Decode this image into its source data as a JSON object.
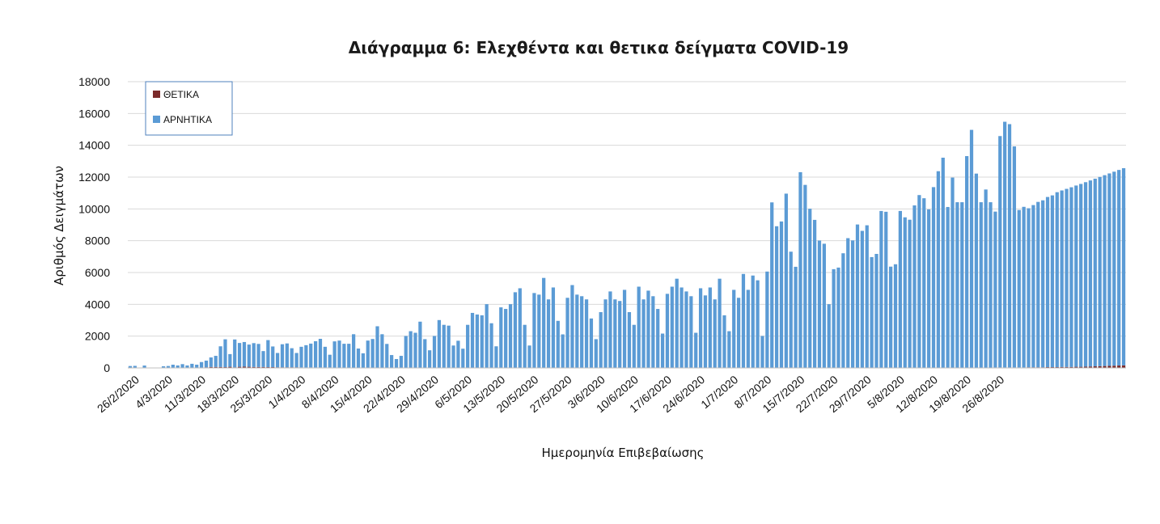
{
  "chart_data": {
    "type": "bar",
    "title": "Διάγραμμα 6: Ελεχθέντα και θετικα δείγματα COVID-19",
    "xlabel": "Ημερομηνία Επιβεβαίωσης",
    "ylabel": "Αριθμός Δειγμάτων",
    "ylim": [
      0,
      18000
    ],
    "yticks": [
      0,
      2000,
      4000,
      6000,
      8000,
      10000,
      12000,
      14000,
      16000,
      18000
    ],
    "xticks": [
      "26/2/2020",
      "4/3/2020",
      "11/3/2020",
      "18/3/2020",
      "25/3/2020",
      "1/4/2020",
      "8/4/2020",
      "15/4/2020",
      "22/4/2020",
      "29/4/2020",
      "6/5/2020",
      "13/5/2020",
      "20/5/2020",
      "27/5/2020",
      "3/6/2020",
      "10/6/2020",
      "17/6/2020",
      "24/6/2020",
      "1/7/2020",
      "8/7/2020",
      "15/7/2020",
      "22/7/2020",
      "29/7/2020",
      "5/8/2020",
      "12/8/2020",
      "19/8/2020",
      "26/8/2020"
    ],
    "grid": true,
    "legend_position": "top-left",
    "stacked": true,
    "series": [
      {
        "name": "ΘΕΤΙΚΑ",
        "color": "#7b2a2a",
        "values": [
          0,
          0,
          0,
          0,
          0,
          0,
          0,
          5,
          2,
          3,
          5,
          8,
          6,
          10,
          5,
          20,
          40,
          60,
          60,
          60,
          50,
          70,
          40,
          70,
          80,
          70,
          60,
          60,
          60,
          50,
          50,
          40,
          40,
          40,
          40,
          40,
          30,
          30,
          30,
          30,
          30,
          30,
          30,
          20,
          20,
          20,
          20,
          20,
          20,
          20,
          20,
          20,
          20,
          20,
          10,
          10,
          10,
          10,
          10,
          10,
          10,
          10,
          10,
          10,
          10,
          10,
          10,
          10,
          10,
          10,
          10,
          10,
          10,
          10,
          10,
          10,
          10,
          10,
          10,
          10,
          10,
          10,
          10,
          10,
          10,
          10,
          10,
          10,
          10,
          10,
          10,
          10,
          10,
          10,
          10,
          10,
          10,
          10,
          10,
          10,
          10,
          10,
          10,
          10,
          10,
          10,
          10,
          10,
          10,
          10,
          10,
          10,
          10,
          10,
          10,
          10,
          10,
          10,
          10,
          10,
          10,
          10,
          10,
          10,
          10,
          10,
          10,
          10,
          10,
          10,
          10,
          10,
          10,
          10,
          10,
          10,
          10,
          10,
          10,
          10,
          10,
          10,
          10,
          10,
          10,
          10,
          10,
          10,
          10,
          10,
          10,
          10,
          20,
          20,
          20,
          20,
          20,
          20,
          20,
          20,
          20,
          20,
          20,
          20,
          20,
          20,
          20,
          20,
          20,
          20,
          20,
          20,
          20,
          20,
          20,
          20,
          20,
          20,
          20,
          20,
          20,
          20,
          30,
          30,
          30,
          30,
          30,
          30,
          30,
          40,
          40,
          40,
          40,
          50,
          50,
          50,
          60,
          60,
          60,
          70,
          70,
          80,
          90,
          100,
          110,
          120,
          130,
          140,
          150,
          160,
          170,
          180,
          190,
          200,
          210,
          220,
          230,
          240,
          250,
          260,
          270,
          280
        ]
      },
      {
        "name": "ΑΡΝΗΤΙΚΑ",
        "color": "#5b9bd5",
        "values": [
          120,
          130,
          20,
          150,
          0,
          0,
          0,
          100,
          120,
          200,
          150,
          230,
          150,
          250,
          200,
          350,
          420,
          600,
          700,
          1300,
          1750,
          800,
          1750,
          1500,
          1550,
          1400,
          1500,
          1450,
          1000,
          1700,
          1300,
          900,
          1450,
          1500,
          1200,
          900,
          1300,
          1400,
          1500,
          1650,
          1800,
          1300,
          800,
          1650,
          1700,
          1500,
          1500,
          2100,
          1200,
          900,
          1700,
          1800,
          2600,
          2100,
          1500,
          800,
          550,
          750,
          2000,
          2300,
          2200,
          2900,
          1800,
          1100,
          2000,
          3000,
          2700,
          2650,
          1400,
          1700,
          1200,
          2700,
          3450,
          3350,
          3300,
          4000,
          2800,
          1350,
          3800,
          3700,
          4000,
          4750,
          5000,
          2700,
          1400,
          4700,
          4600,
          5650,
          4300,
          5050,
          2950,
          2100,
          4400,
          5200,
          4600,
          4500,
          4300,
          3100,
          1800,
          3500,
          4300,
          4800,
          4300,
          4200,
          4900,
          3500,
          2700,
          5100,
          4300,
          4850,
          4500,
          3700,
          2150,
          4650,
          5100,
          5600,
          5050,
          4800,
          4500,
          2200,
          5000,
          4550,
          5050,
          4300,
          5600,
          3300,
          2300,
          4900,
          4400,
          5900,
          4900,
          5800,
          5500,
          2000,
          6050,
          10400,
          8900,
          9200,
          10950,
          7300,
          6350,
          12300,
          11500,
          10000,
          9300,
          8000,
          7800,
          4000,
          6200,
          6300,
          7200,
          8150,
          8000,
          9000,
          8600,
          8950,
          6950,
          7150,
          9850,
          9800,
          6350,
          6500,
          9850,
          9450,
          9300,
          10200,
          10850,
          10650,
          9950,
          11350,
          12350,
          13200,
          10100,
          11950,
          10400,
          10400,
          13300,
          14950,
          12200,
          10400,
          11200,
          10400,
          9800,
          14550,
          15450,
          15300,
          13900,
          9900,
          10100,
          10000,
          10200,
          10400,
          10500,
          10700,
          10800,
          11000,
          11100,
          11200,
          11300,
          11400,
          11500,
          11600,
          11700,
          11800,
          11900,
          12000,
          12100,
          12200,
          12300,
          12400
        ]
      }
    ]
  }
}
